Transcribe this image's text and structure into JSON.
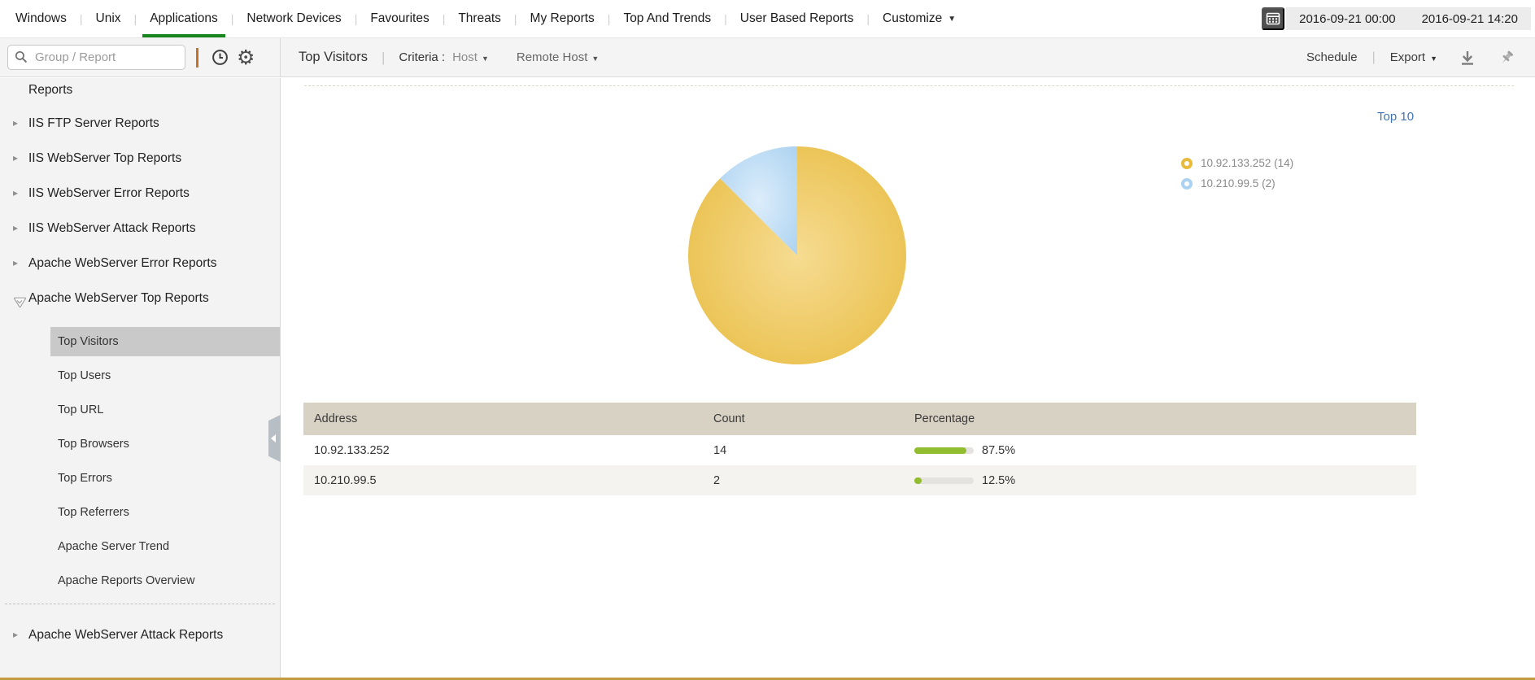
{
  "nav": {
    "tabs": [
      "Windows",
      "Unix",
      "Applications",
      "Network Devices",
      "Favourites",
      "Threats",
      "My Reports",
      "Top And Trends",
      "User Based Reports",
      "Customize"
    ],
    "active_tab": "Applications",
    "caret_tabs": [
      "Customize"
    ],
    "date_start": "2016-09-21 00:00",
    "date_end": "2016-09-21 14:20"
  },
  "sidebar": {
    "search_placeholder": "Group / Report",
    "partial_item": "Reports",
    "groups": [
      {
        "label": "IIS FTP Server Reports",
        "expanded": false
      },
      {
        "label": "IIS WebServer Top Reports",
        "expanded": false
      },
      {
        "label": "IIS WebServer Error Reports",
        "expanded": false
      },
      {
        "label": "IIS WebServer Attack Reports",
        "expanded": false
      },
      {
        "label": "Apache WebServer Error Reports",
        "expanded": false
      },
      {
        "label": "Apache WebServer Top Reports",
        "expanded": true,
        "children": [
          "Top Visitors",
          "Top Users",
          "Top URL",
          "Top Browsers",
          "Top Errors",
          "Top Referrers",
          "Apache Server Trend",
          "Apache Reports Overview"
        ],
        "selected_child": "Top Visitors"
      },
      {
        "label": "Apache WebServer Attack Reports",
        "expanded": false,
        "divider_before": true
      }
    ]
  },
  "toolbar": {
    "title": "Top Visitors",
    "criteria_label": "Criteria :",
    "criteria_value": "Host",
    "filter_value": "Remote Host",
    "schedule_label": "Schedule",
    "export_label": "Export"
  },
  "report": {
    "top_link": "Top 10",
    "legend": [
      {
        "label": "10.92.133.252 (14)",
        "color": "#e8ba3e"
      },
      {
        "label": "10.210.99.5 (2)",
        "color": "#abd2f0"
      }
    ]
  },
  "chart_data": {
    "type": "pie",
    "title": "Top Visitors (Top 10)",
    "labels": [
      "10.92.133.252",
      "10.210.99.5"
    ],
    "values": [
      14,
      2
    ],
    "percentages": [
      87.5,
      12.5
    ],
    "colors": [
      {
        "base": "#e8ba3e",
        "light": "#f6dc92"
      },
      {
        "base": "#abd2f0",
        "light": "#dcedfb"
      }
    ],
    "start": "top",
    "direction": "clockwise",
    "legend_position": "right"
  },
  "table": {
    "columns": [
      "Address",
      "Count",
      "Percentage"
    ],
    "rows": [
      {
        "address": "10.92.133.252",
        "count": "14",
        "percentage": 87.5,
        "percentage_label": "87.5%"
      },
      {
        "address": "10.210.99.5",
        "count": "2",
        "percentage": 12.5,
        "percentage_label": "12.5%"
      }
    ],
    "bar_color": "#93bd31",
    "bar_track_color": "#e4e3df"
  },
  "colors": {
    "accent_green": "#17871d",
    "table_header_bg": "#d8d2c5",
    "link_blue": "#3f74b5",
    "selected_item_bg": "#c9c9c9"
  }
}
